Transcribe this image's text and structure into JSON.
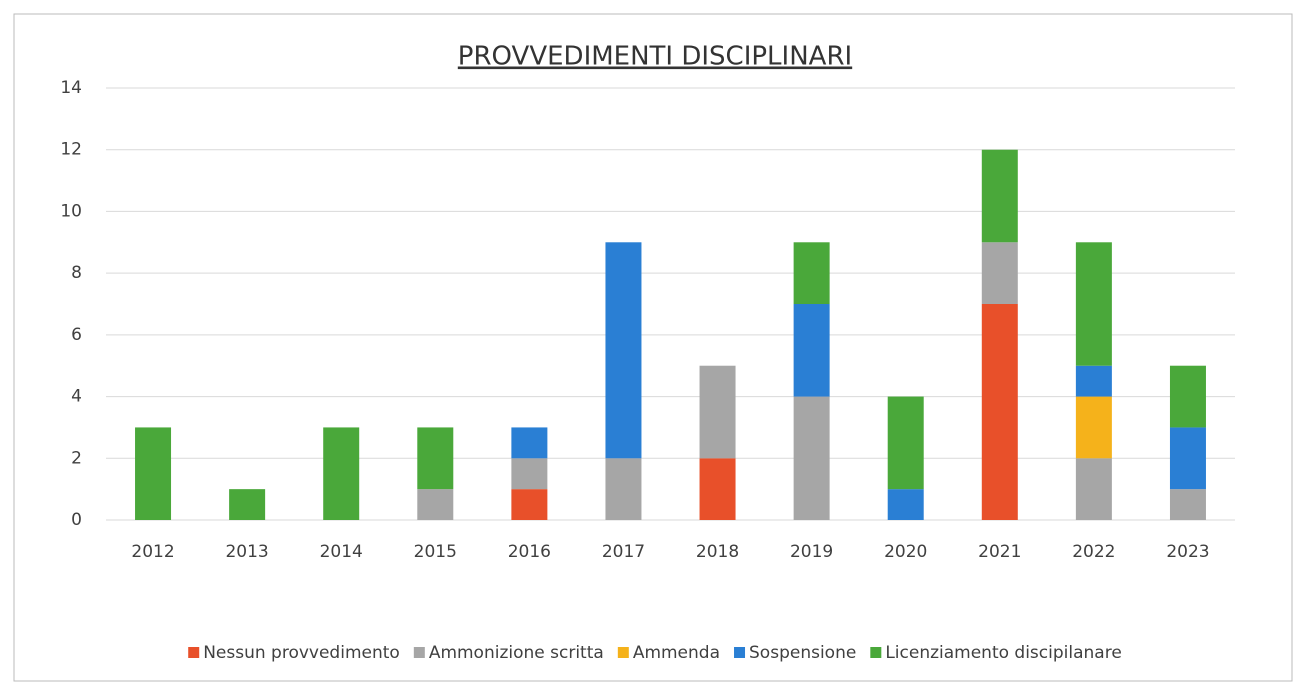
{
  "chart_data": {
    "type": "stacked_bar",
    "title": "PROVVEDIMENTI DISCIPLINARI",
    "categories": [
      "2012",
      "2013",
      "2014",
      "2015",
      "2016",
      "2017",
      "2018",
      "2019",
      "2020",
      "2021",
      "2022",
      "2023"
    ],
    "series": [
      {
        "name": "Nessun provvedimento",
        "color": "#e8502a",
        "values": [
          0,
          0,
          0,
          0,
          1,
          0,
          2,
          0,
          0,
          7,
          0,
          0
        ]
      },
      {
        "name": "Ammonizione scritta",
        "color": "#a6a6a6",
        "values": [
          0,
          0,
          0,
          1,
          1,
          2,
          3,
          4,
          0,
          2,
          2,
          1
        ]
      },
      {
        "name": "Ammenda",
        "color": "#f5b21b",
        "values": [
          0,
          0,
          0,
          0,
          0,
          0,
          0,
          0,
          0,
          0,
          2,
          0
        ]
      },
      {
        "name": "Sospensione",
        "color": "#2a7fd4",
        "values": [
          0,
          0,
          0,
          0,
          1,
          7,
          0,
          3,
          1,
          0,
          1,
          2
        ]
      },
      {
        "name": "Licenziamento discipilanare",
        "color": "#4aa83a",
        "values": [
          3,
          1,
          3,
          2,
          0,
          0,
          0,
          2,
          3,
          3,
          4,
          2
        ]
      }
    ],
    "ylim": [
      0,
      14
    ],
    "yticks": [
      0,
      2,
      4,
      6,
      8,
      10,
      12,
      14
    ],
    "grid": true,
    "legend": "bottom"
  }
}
